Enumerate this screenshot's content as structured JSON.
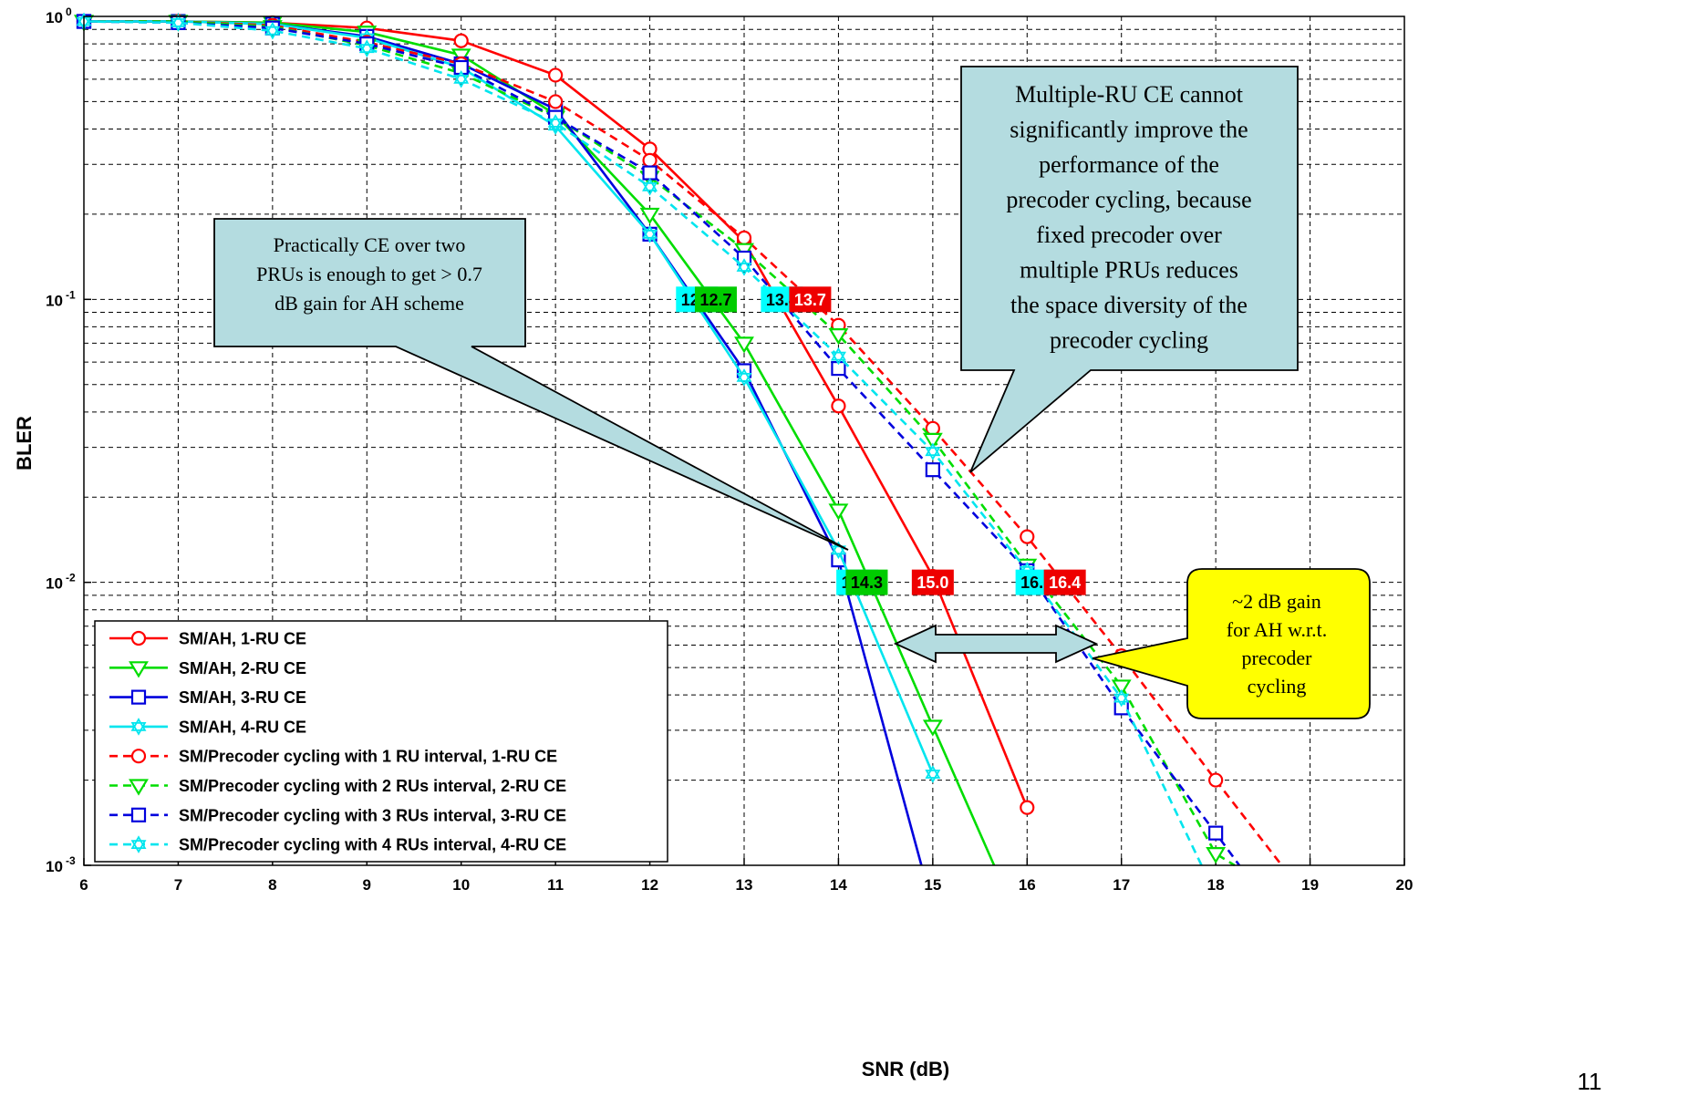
{
  "page_number": "11",
  "chart_data": {
    "type": "line",
    "xlabel": "SNR (dB)",
    "ylabel": "BLER",
    "xlim": [
      6,
      20
    ],
    "ylim": [
      0.001,
      1
    ],
    "yscale": "log",
    "grid": true,
    "legend_position": "bottom-left",
    "x_ticks": [
      "6",
      "7",
      "8",
      "9",
      "10",
      "11",
      "12",
      "13",
      "14",
      "15",
      "16",
      "17",
      "18",
      "19",
      "20"
    ],
    "y_ticks": [
      {
        "base": "10",
        "exp": "0"
      },
      {
        "base": "10",
        "exp": "-1"
      },
      {
        "base": "10",
        "exp": "-2"
      },
      {
        "base": "10",
        "exp": "-3"
      }
    ],
    "series": [
      {
        "name": "SM/AH, 1-RU CE",
        "color": "#ff0000",
        "dash": "solid",
        "marker": "circle",
        "x": [
          6,
          7,
          8,
          9,
          10,
          11,
          12,
          13,
          14,
          15,
          16
        ],
        "y": [
          0.96,
          0.96,
          0.95,
          0.91,
          0.82,
          0.62,
          0.34,
          0.16,
          0.042,
          0.0105,
          0.0016
        ]
      },
      {
        "name": "SM/AH, 2-RU CE",
        "color": "#00dd00",
        "dash": "solid",
        "marker": "triangle-down",
        "x": [
          6,
          7,
          8,
          9,
          10,
          11,
          12,
          13,
          14,
          15,
          15.65
        ],
        "y": [
          0.96,
          0.96,
          0.95,
          0.88,
          0.73,
          0.45,
          0.2,
          0.07,
          0.018,
          0.0031,
          0.001
        ]
      },
      {
        "name": "SM/AH, 3-RU CE",
        "color": "#0000dd",
        "dash": "solid",
        "marker": "square",
        "x": [
          6,
          7,
          8,
          9,
          10,
          11,
          12,
          13,
          14,
          14.88
        ],
        "y": [
          0.96,
          0.96,
          0.94,
          0.85,
          0.68,
          0.47,
          0.17,
          0.056,
          0.012,
          0.001
        ]
      },
      {
        "name": "SM/AH, 4-RU CE",
        "color": "#00e5ee",
        "dash": "solid",
        "marker": "hexagram",
        "x": [
          6,
          7,
          8,
          9,
          10,
          11,
          12,
          13,
          14,
          15
        ],
        "y": [
          0.96,
          0.96,
          0.94,
          0.84,
          0.66,
          0.41,
          0.17,
          0.053,
          0.013,
          0.0021
        ]
      },
      {
        "name": "SM/Precoder cycling with 1 RU interval, 1-RU CE",
        "color": "#ff0000",
        "dash": "dashed",
        "marker": "circle",
        "x": [
          6,
          7,
          8,
          9,
          10,
          11,
          12,
          13,
          14,
          15,
          16,
          17,
          18,
          18.7
        ],
        "y": [
          0.96,
          0.96,
          0.93,
          0.81,
          0.68,
          0.5,
          0.31,
          0.165,
          0.081,
          0.035,
          0.0145,
          0.0055,
          0.002,
          0.001
        ]
      },
      {
        "name": "SM/Precoder cycling with 2 RUs interval, 2-RU CE",
        "color": "#00dd00",
        "dash": "dashed",
        "marker": "triangle-down",
        "x": [
          6,
          7,
          8,
          9,
          10,
          11,
          12,
          13,
          14,
          15,
          16,
          17,
          18,
          18.2
        ],
        "y": [
          0.96,
          0.96,
          0.92,
          0.79,
          0.63,
          0.44,
          0.27,
          0.15,
          0.075,
          0.032,
          0.0115,
          0.0043,
          0.0011,
          0.001
        ]
      },
      {
        "name": "SM/Precoder cycling with 3 RUs interval, 3-RU CE",
        "color": "#0000dd",
        "dash": "dashed",
        "marker": "square",
        "x": [
          6,
          7,
          8,
          9,
          10,
          11,
          12,
          13,
          14,
          15,
          16,
          17,
          18,
          18.25
        ],
        "y": [
          0.96,
          0.95,
          0.91,
          0.8,
          0.66,
          0.44,
          0.28,
          0.14,
          0.057,
          0.025,
          0.011,
          0.0036,
          0.0013,
          0.001
        ]
      },
      {
        "name": "SM/Precoder cycling with 4 RUs interval, 4-RU CE",
        "color": "#00e5ee",
        "dash": "dashed",
        "marker": "hexagram",
        "x": [
          6,
          7,
          8,
          9,
          10,
          11,
          12,
          13,
          14,
          15,
          16,
          17,
          17.85
        ],
        "y": [
          0.96,
          0.95,
          0.89,
          0.77,
          0.6,
          0.42,
          0.25,
          0.13,
          0.063,
          0.029,
          0.011,
          0.0039,
          0.001
        ]
      }
    ],
    "value_tags": [
      {
        "text": "12.5",
        "bg": "#00ffff",
        "fg": "#000000",
        "x": 12.5,
        "y": 0.1
      },
      {
        "text": "12.7",
        "bg": "#00cc00",
        "fg": "#000000",
        "x": 12.7,
        "y": 0.1
      },
      {
        "text": "13.4",
        "bg": "#00ffff",
        "fg": "#000000",
        "x": 13.4,
        "y": 0.1
      },
      {
        "text": "13.7",
        "bg": "#ee0000",
        "fg": "#ffffff",
        "x": 13.7,
        "y": 0.1
      },
      {
        "text": "14.2",
        "bg": "#00ffff",
        "fg": "#000000",
        "x": 14.2,
        "y": 0.01
      },
      {
        "text": "14.3",
        "bg": "#00cc00",
        "fg": "#000000",
        "x": 14.3,
        "y": 0.01
      },
      {
        "text": "15.0",
        "bg": "#ee0000",
        "fg": "#ffffff",
        "x": 15.0,
        "y": 0.01
      },
      {
        "text": "16.1",
        "bg": "#00ffff",
        "fg": "#000000",
        "x": 16.1,
        "y": 0.01
      },
      {
        "text": "16.4",
        "bg": "#ee0000",
        "fg": "#ffffff",
        "x": 16.4,
        "y": 0.01
      }
    ],
    "annotations": {
      "left_callout": [
        "Practically CE over two",
        "PRUs is enough to get > 0.7",
        "dB gain for AH scheme"
      ],
      "right_callout": [
        "Multiple-RU CE cannot",
        "significantly improve the",
        "performance of the",
        "precoder cycling, because",
        "fixed precoder over",
        "multiple PRUs reduces",
        "the space diversity of the",
        "precoder cycling"
      ],
      "gain_callout": [
        "~2 dB gain",
        "for AH w.r.t.",
        "precoder",
        "cycling"
      ]
    },
    "colors": {
      "callout_fill": "#b4dce0",
      "gain_fill": "#ffff00",
      "arrow_fill": "#b4dce0",
      "grid": "#000000"
    }
  }
}
